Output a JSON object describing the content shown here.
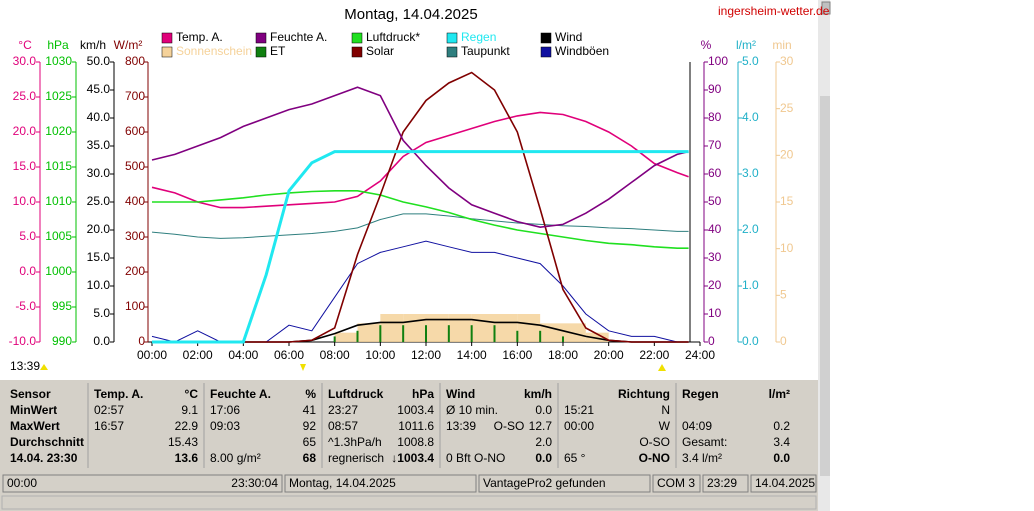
{
  "header": {
    "site": "ingersheim-wetter.de"
  },
  "chart_data": {
    "type": "line",
    "title": "Montag, 14.04.2025",
    "annotation": "13:39",
    "x": [
      0,
      1,
      2,
      3,
      4,
      5,
      6,
      7,
      8,
      9,
      10,
      11,
      12,
      13,
      14,
      15,
      16,
      17,
      18,
      19,
      20,
      21,
      22,
      23,
      23.5
    ],
    "xlim": [
      0,
      24
    ],
    "xticks": [
      {
        "value": 0,
        "label": "00:00"
      },
      {
        "value": 2,
        "label": "02:00"
      },
      {
        "value": 4,
        "label": "04:00"
      },
      {
        "value": 6,
        "label": "06:00"
      },
      {
        "value": 8,
        "label": "08:00"
      },
      {
        "value": 10,
        "label": "10:00"
      },
      {
        "value": 12,
        "label": "12:00"
      },
      {
        "value": 14,
        "label": "14:00"
      },
      {
        "value": 16,
        "label": "16:00"
      },
      {
        "value": 18,
        "label": "18:00"
      },
      {
        "value": 20,
        "label": "20:00"
      },
      {
        "value": 22,
        "label": "22:00"
      },
      {
        "value": 24,
        "label": "24:00"
      }
    ],
    "axes": [
      {
        "unit": "°C",
        "color": "#e0007a",
        "ylim": [
          -10,
          30
        ],
        "yticks": [
          {
            "value": -10,
            "label": "-10.0"
          },
          {
            "value": -5,
            "label": "-5.0"
          },
          {
            "value": 0,
            "label": "0.0"
          },
          {
            "value": 5,
            "label": "5.0"
          },
          {
            "value": 10,
            "label": "10.0"
          },
          {
            "value": 15,
            "label": "15.0"
          },
          {
            "value": 20,
            "label": "20.0"
          },
          {
            "value": 25,
            "label": "25.0"
          },
          {
            "value": 30,
            "label": "30.0"
          }
        ],
        "series": [
          {
            "name": "Temp. A.",
            "color": "#e0007a",
            "values": [
              12.1,
              11.3,
              10.0,
              9.2,
              9.2,
              9.4,
              9.6,
              9.8,
              10.0,
              10.8,
              13.0,
              16.5,
              18.5,
              19.5,
              20.5,
              21.5,
              22.3,
              22.8,
              22.5,
              21.5,
              20.0,
              18.0,
              15.5,
              14.2,
              13.6
            ]
          },
          {
            "name": "Taupunkt",
            "color": "#2f7f7f",
            "values": [
              5.7,
              5.4,
              5.0,
              4.8,
              4.9,
              5.1,
              5.3,
              5.5,
              5.8,
              6.3,
              7.5,
              8.3,
              8.3,
              8.0,
              7.6,
              7.3,
              7.0,
              6.8,
              6.6,
              6.5,
              6.3,
              6.2,
              6.0,
              5.8,
              5.8
            ]
          }
        ]
      },
      {
        "unit": "hPa",
        "color": "#00c000",
        "ylim": [
          990,
          1030
        ],
        "yticks": [
          990,
          995,
          1000,
          1005,
          1010,
          1015,
          1020,
          1025,
          1030
        ],
        "series": [
          {
            "name": "Luftdruck*",
            "color": "#20e020",
            "values": [
              1010.0,
              1010.0,
              1010.0,
              1010.3,
              1010.6,
              1011.0,
              1011.3,
              1011.5,
              1011.6,
              1011.6,
              1011.0,
              1010.0,
              1009.3,
              1008.5,
              1007.5,
              1006.7,
              1006.0,
              1005.5,
              1005.0,
              1004.5,
              1004.1,
              1003.9,
              1003.6,
              1003.4,
              1003.4
            ]
          }
        ]
      },
      {
        "unit": "km/h",
        "color": "#000000",
        "ylim": [
          0,
          50
        ],
        "yticks": [
          {
            "value": 0,
            "label": "0.0"
          },
          {
            "value": 5,
            "label": "5.0"
          },
          {
            "value": 10,
            "label": "10.0"
          },
          {
            "value": 15,
            "label": "15.0"
          },
          {
            "value": 20,
            "label": "20.0"
          },
          {
            "value": 25,
            "label": "25.0"
          },
          {
            "value": 30,
            "label": "30.0"
          },
          {
            "value": 35,
            "label": "35.0"
          },
          {
            "value": 40,
            "label": "40.0"
          },
          {
            "value": 45,
            "label": "45.0"
          },
          {
            "value": 50,
            "label": "50.0"
          }
        ],
        "series": [
          {
            "name": "Wind",
            "color": "#000000",
            "values": [
              0,
              0,
              0,
              0,
              0,
              0,
              0,
              0.3,
              1.5,
              3,
              3.5,
              3.5,
              4,
              4,
              4,
              3.5,
              3.5,
              3,
              2,
              1,
              0.3,
              0,
              0,
              0,
              0
            ]
          },
          {
            "name": "Windböen",
            "color": "#1010a0",
            "values": [
              1,
              0,
              2,
              0,
              0,
              0,
              3,
              2,
              8,
              14,
              16,
              17,
              18,
              17,
              16,
              16,
              15,
              14,
              10,
              5,
              2,
              1,
              1,
              0,
              0
            ]
          }
        ]
      },
      {
        "unit": "W/m²",
        "color": "#800000",
        "ylim": [
          0,
          800
        ],
        "yticks": [
          0,
          100,
          200,
          300,
          400,
          500,
          600,
          700,
          800
        ],
        "series": [
          {
            "name": "Solar",
            "color": "#800000",
            "values": [
              0,
              0,
              0,
              0,
              0,
              0,
              0,
              5,
              40,
              250,
              420,
              600,
              690,
              740,
              770,
              720,
              600,
              380,
              150,
              40,
              5,
              0,
              0,
              0,
              0
            ]
          }
        ]
      },
      {
        "unit": "%",
        "color": "#800080",
        "ylim": [
          0,
          100
        ],
        "yticks": [
          0,
          10,
          20,
          30,
          40,
          50,
          60,
          70,
          80,
          90,
          100
        ],
        "series": [
          {
            "name": "Feuchte A.",
            "color": "#800080",
            "values": [
              65,
              67,
              70,
              73,
              77,
              80,
              83,
              85,
              88,
              91,
              88,
              72,
              63,
              55,
              49,
              46,
              43,
              41,
              42,
              46,
              51,
              57,
              63,
              67,
              68
            ]
          }
        ]
      },
      {
        "unit": "l/m²",
        "color": "#20b0c8",
        "ylim": [
          0,
          5
        ],
        "yticks": [
          {
            "value": 0,
            "label": "0.0"
          },
          {
            "value": 1,
            "label": "1.0"
          },
          {
            "value": 2,
            "label": "2.0"
          },
          {
            "value": 3,
            "label": "3.0"
          },
          {
            "value": 4,
            "label": "4.0"
          },
          {
            "value": 5,
            "label": "5.0"
          }
        ],
        "series": [
          {
            "name": "Regen",
            "color": "#20e8f0",
            "values": [
              0,
              0,
              0,
              0,
              0,
              1.2,
              2.7,
              3.2,
              3.4,
              3.4,
              3.4,
              3.4,
              3.4,
              3.4,
              3.4,
              3.4,
              3.4,
              3.4,
              3.4,
              3.4,
              3.4,
              3.4,
              3.4,
              3.4,
              3.4
            ]
          },
          {
            "name": "ET",
            "color": "#108010",
            "values": [
              0,
              0,
              0,
              0,
              0,
              0,
              0,
              0,
              0.1,
              0.2,
              0.3,
              0.3,
              0.3,
              0.3,
              0.3,
              0.3,
              0.2,
              0.2,
              0.1,
              0,
              0,
              0,
              0,
              0,
              0
            ]
          }
        ]
      },
      {
        "unit": "min",
        "color": "#f0c890",
        "ylim": [
          0,
          30
        ],
        "yticks": [
          0,
          5,
          10,
          15,
          20,
          25,
          30
        ],
        "series": [
          {
            "name": "Sonnenschein",
            "color": "#f5d29a",
            "values": [
              0,
              0,
              0,
              0,
              0,
              0,
              0,
              0,
              1,
              2,
              3,
              3,
              3,
              3,
              3,
              3,
              3,
              2,
              2,
              1,
              0,
              0,
              0,
              0,
              0
            ]
          }
        ]
      }
    ]
  },
  "table": {
    "header": [
      [
        "Sensor"
      ],
      [
        "Temp. A.",
        "°C"
      ],
      [
        "Feuchte A.",
        "%"
      ],
      [
        "Luftdruck",
        "hPa"
      ],
      [
        "Wind",
        "km/h"
      ],
      [
        "Richtung"
      ],
      [
        "Regen",
        "l/m²"
      ]
    ],
    "rows": [
      [
        [
          "MinWert"
        ],
        [
          "02:57",
          "9.1"
        ],
        [
          "17:06",
          "41"
        ],
        [
          "23:27",
          "1003.4"
        ],
        [
          "Ø 10 min.",
          "0.0"
        ],
        [
          "15:21",
          "N"
        ],
        []
      ],
      [
        [
          "MaxWert"
        ],
        [
          "16:57",
          "22.9"
        ],
        [
          "09:03",
          "92"
        ],
        [
          "08:57",
          "1011.6"
        ],
        [
          "13:39",
          "O-SO",
          "12.7"
        ],
        [
          "00:00",
          "W"
        ],
        [
          "04:09",
          "0.2"
        ]
      ],
      [
        [
          "Durchschnitt"
        ],
        [
          "15.43"
        ],
        [
          "65"
        ],
        [
          "^1.3hPa/h",
          "1008.8"
        ],
        [
          "2.0"
        ],
        [
          "O-SO"
        ],
        [
          "Gesamt:",
          "3.4"
        ]
      ],
      [
        [
          "14.04. 23:30"
        ],
        [
          "13.6"
        ],
        [
          "8.00 g/m²",
          "68"
        ],
        [
          "regnerisch",
          "↓1003.4"
        ],
        [
          "0 Bft O-NO",
          "0.0"
        ],
        [
          "65 °",
          "O-NO"
        ],
        [
          "3.4 l/m²",
          "0.0"
        ]
      ]
    ]
  },
  "status_bar": [
    [
      "00:00",
      "23:30:04"
    ],
    [
      "Montag, 14.04.2025"
    ],
    [
      "VantagePro2 gefunden"
    ],
    [
      "COM 3"
    ],
    [
      "23:29"
    ],
    [
      "14.04.2025"
    ]
  ]
}
